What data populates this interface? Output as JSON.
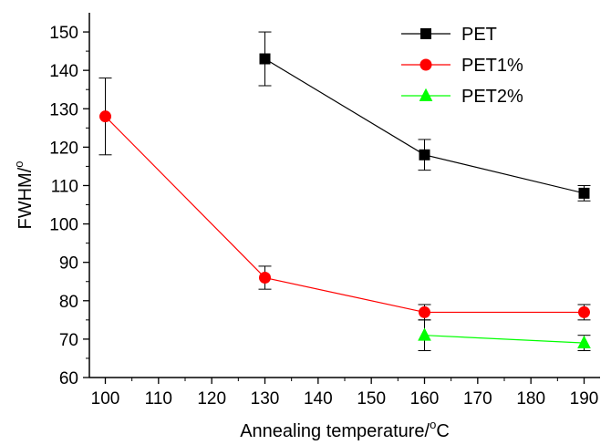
{
  "chart_data": {
    "type": "line",
    "xlabel": "Annealing temperature/",
    "xlabel_unit": "C",
    "xlabel_degree": "o",
    "ylabel": "FWHM/",
    "ylabel_degree": "o",
    "xlim": [
      97,
      193
    ],
    "ylim": [
      60,
      155
    ],
    "xticks": [
      100,
      110,
      120,
      130,
      140,
      150,
      160,
      170,
      180,
      190
    ],
    "yticks": [
      60,
      70,
      80,
      90,
      100,
      110,
      120,
      130,
      140,
      150
    ],
    "legend_position": "top-right",
    "series": [
      {
        "name": "PET",
        "color": "#000000",
        "marker": "square",
        "x": [
          130,
          160,
          190
        ],
        "y": [
          143,
          118,
          108
        ],
        "err": [
          7,
          4,
          2
        ]
      },
      {
        "name": "PET1%",
        "color": "#ff0000",
        "marker": "circle",
        "x": [
          100,
          130,
          160,
          190
        ],
        "y": [
          128,
          86,
          77,
          77
        ],
        "err": [
          10,
          3,
          2,
          2
        ]
      },
      {
        "name": "PET2%",
        "color": "#00ff00",
        "marker": "triangle",
        "x": [
          160,
          190
        ],
        "y": [
          71,
          69
        ],
        "err": [
          4,
          2
        ]
      }
    ]
  }
}
